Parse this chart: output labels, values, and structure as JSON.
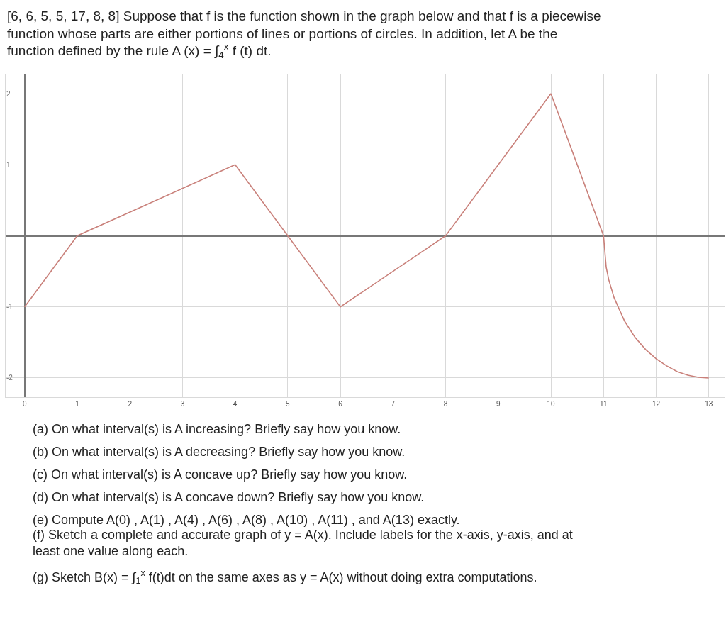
{
  "chart_data": {
    "type": "line",
    "title": "[6, 6, 5, 5, 17, 8, 8] Suppose that f is the function shown in the graph below and that f is a piecewise function whose parts are either portions of lines or portions of circles. In addition, let A be the function defined by the rule A (x) = ∫$_{4}$$^{x}$ f (t) dt.",
    "series": [
      {
        "color": "#c9807a",
        "x": [
          0,
          1,
          4,
          5,
          6,
          8,
          10,
          11,
          11.05,
          11.1,
          11.2,
          11.4,
          11.6,
          11.8,
          12,
          12.2,
          12.4,
          12.6,
          12.8,
          13
        ],
        "values": [
          -1,
          0,
          1,
          0,
          -1,
          0,
          2,
          0,
          -0.44,
          -0.62,
          -0.87,
          -1.2,
          -1.43,
          -1.6,
          -1.73,
          -1.83,
          -1.91,
          -1.96,
          -1.99,
          -2
        ]
      }
    ],
    "xlim": [
      -0.36,
      13.3
    ],
    "ylim": [
      -2.27,
      2.27
    ],
    "xticks": [
      0,
      1,
      2,
      3,
      4,
      5,
      6,
      7,
      8,
      9,
      10,
      11,
      12,
      13
    ],
    "yticks": [
      -2,
      -1,
      {
        "value": 0,
        "label": null
      },
      1,
      2
    ],
    "grid": true,
    "marker": "none",
    "line_style": "solid",
    "annotations": [
      "(a) On what interval(s) is A increasing? Briefly say how you know.",
      "(b) On what interval(s) is A decreasing? Briefly say how you know.",
      "(c) On what interval(s) is A concave up? Briefly say how you know.",
      "(d) On what interval(s) is A concave down? Briefly say how you know.",
      "(e) Compute A(0) , A(1) , A(4) , A(6) , A(8) , A(10) , A(11) , and A(13) exactly.",
      "(f) Sketch a complete and accurate graph of y = A(x). Include labels for the x-axis, y-axis, and at least one value along each.",
      "(g) Sketch B(x) = ∫$_{1}$$^{x}$ f(t)dt on the same axes as y = A(x) without doing extra computations."
    ]
  }
}
